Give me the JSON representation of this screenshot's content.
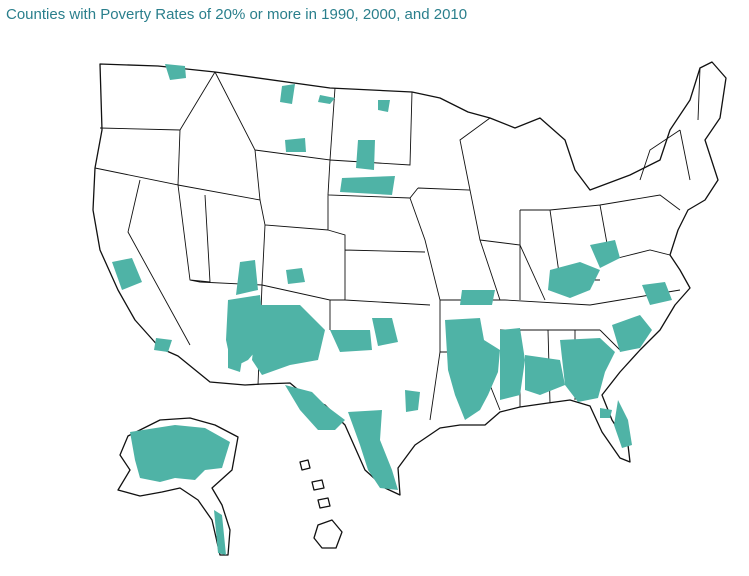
{
  "title": "Counties with Poverty Rates of 20% or more in 1990, 2000, and 2010"
}
